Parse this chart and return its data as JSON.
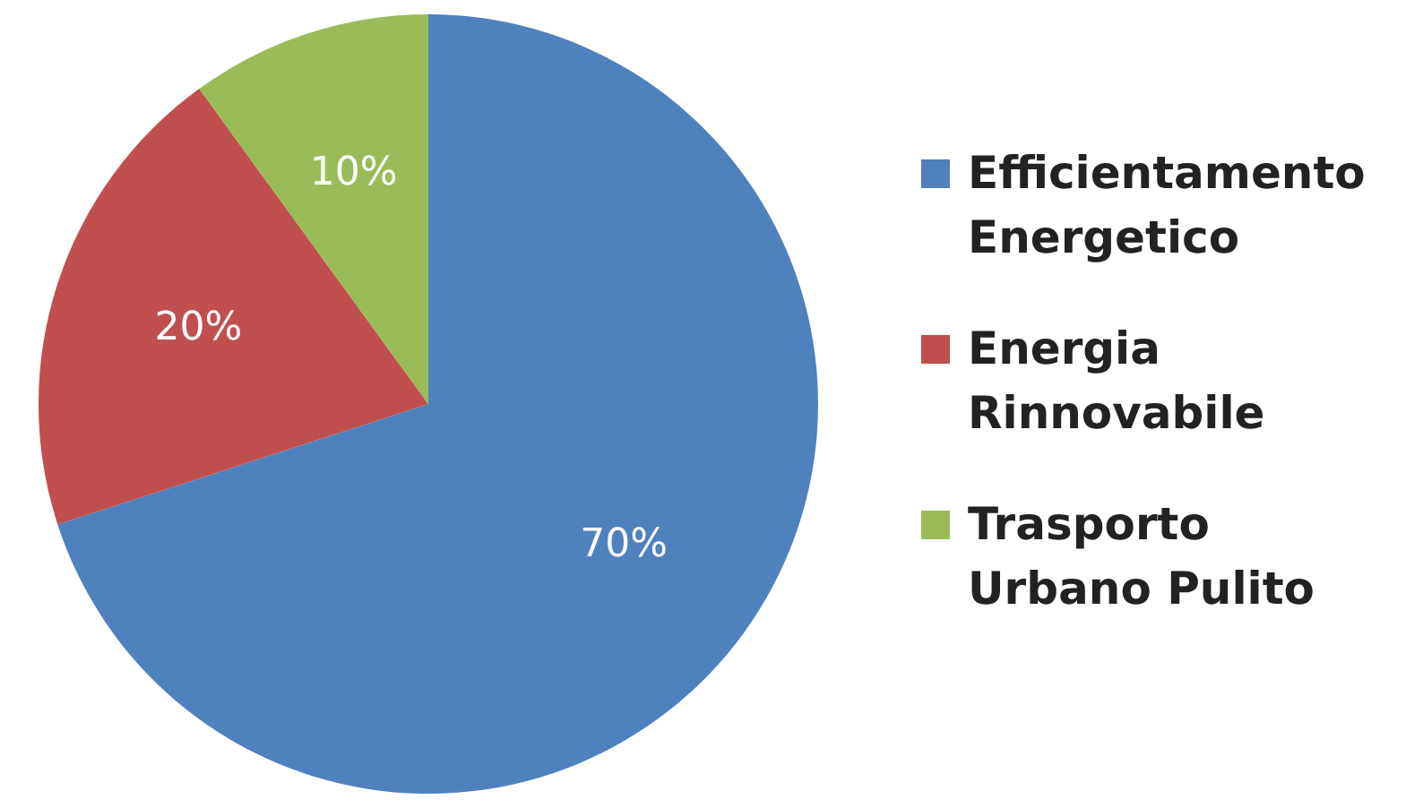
{
  "chart_data": {
    "type": "pie",
    "categories": [
      "Efficientamento Energetico",
      "Energia Rinnovabile",
      "Trasporto Urbano Pulito"
    ],
    "values": [
      70,
      20,
      10
    ],
    "colors": [
      "#4f81bd",
      "#c0504d",
      "#9bbb59"
    ],
    "value_labels": [
      "70%",
      "20%",
      "10%"
    ],
    "legend": "right"
  }
}
